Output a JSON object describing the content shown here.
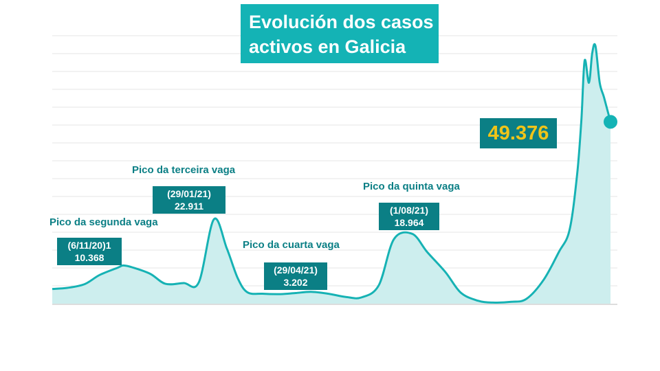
{
  "title_lines": [
    "Evolución dos casos",
    "activos en Galicia"
  ],
  "current_value_label": "49.376",
  "colors": {
    "accent": "#14b3b5",
    "dark_teal": "#0b7f85",
    "area_fill": "#cdeeee",
    "line": "#16b2b4",
    "highlight": "#f0c419",
    "grid": "#e6e6e6"
  },
  "peaks": [
    {
      "label": "Pico da segunda vaga",
      "date": "(6/11/20)1",
      "value": "10.368"
    },
    {
      "label": "Pico da terceira vaga",
      "date": "(29/01/21)",
      "value": "22.911"
    },
    {
      "label": "Pico da cuarta vaga",
      "date": "(29/04/21)",
      "value": "3.202"
    },
    {
      "label": "Pico da quinta vaga",
      "date": "(1/08/21)",
      "value": "18.964"
    }
  ],
  "chart_data": {
    "type": "area",
    "title": "Evolución dos casos activos en Galicia",
    "xlabel": "",
    "ylabel": "",
    "grid": true,
    "ylim": [
      0,
      75000
    ],
    "x": [
      "2020-09-01",
      "2020-09-15",
      "2020-10-01",
      "2020-10-15",
      "2020-11-01",
      "2020-11-06",
      "2020-11-15",
      "2020-12-01",
      "2020-12-15",
      "2021-01-01",
      "2021-01-15",
      "2021-01-29",
      "2021-02-10",
      "2021-02-20",
      "2021-03-01",
      "2021-03-15",
      "2021-04-01",
      "2021-04-15",
      "2021-04-29",
      "2021-05-15",
      "2021-06-01",
      "2021-06-15",
      "2021-07-01",
      "2021-07-15",
      "2021-08-01",
      "2021-08-15",
      "2021-09-01",
      "2021-09-15",
      "2021-10-01",
      "2021-10-15",
      "2021-11-01",
      "2021-11-15",
      "2021-12-01",
      "2021-12-15",
      "2021-12-25",
      "2022-01-01",
      "2022-01-05",
      "2022-01-08",
      "2022-01-12",
      "2022-01-15",
      "2022-01-18",
      "2022-01-22",
      "2022-01-26",
      "2022-02-01"
    ],
    "series": [
      {
        "values": [
          4000,
          4300,
          5300,
          7800,
          9800,
          10368,
          9800,
          8100,
          5400,
          5600,
          5800,
          22911,
          15000,
          7000,
          3100,
          2700,
          2600,
          2900,
          3202,
          2700,
          1800,
          1700,
          5000,
          17500,
          18964,
          14000,
          8500,
          3000,
          800,
          300,
          500,
          1300,
          6500,
          14000,
          20000,
          35000,
          50000,
          66000,
          60000,
          68000,
          70000,
          60000,
          56000,
          49376
        ]
      }
    ],
    "annotations": [
      "Pico da segunda vaga",
      "Pico da terceira vaga",
      "Pico da cuarta vaga",
      "Pico da quinta vaga"
    ]
  }
}
